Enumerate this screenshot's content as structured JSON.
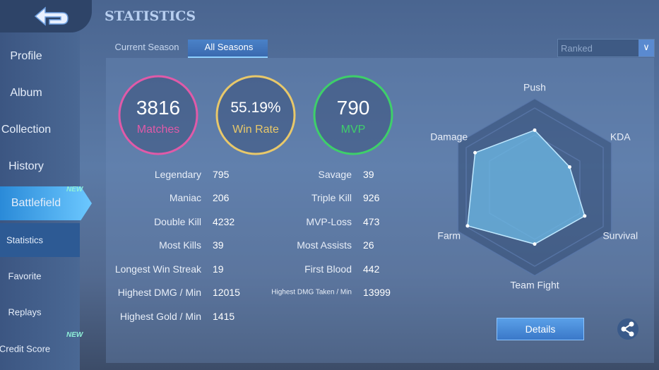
{
  "header": {
    "title": "STATISTICS"
  },
  "sidebar": {
    "items": [
      "Profile",
      "Album",
      "Collection",
      "History",
      "Battlefield",
      "Statistics",
      "Favorite",
      "Replays",
      "Credit Score"
    ],
    "badges": {
      "battlefield": "NEW",
      "credit_score": "NEW"
    }
  },
  "tabs": [
    "Current Season",
    "All Seasons"
  ],
  "filter": "Ranked",
  "summary": [
    {
      "value": 3816,
      "label": "Matches",
      "color": "#e05aa8"
    },
    {
      "value": "55.19%",
      "label": "Win Rate",
      "color": "#e8c86a"
    },
    {
      "value": 790,
      "label": "MVP",
      "color": "#3ecf6a"
    }
  ],
  "stats_left": [
    [
      "Legendary",
      795
    ],
    [
      "Maniac",
      206
    ],
    [
      "Double Kill",
      4232
    ],
    [
      "Most Kills",
      39
    ],
    [
      "Longest Win Streak",
      19
    ],
    [
      "Highest DMG / Min",
      12015
    ],
    [
      "Highest Gold / Min",
      1415
    ]
  ],
  "stats_right": [
    [
      "Savage",
      39
    ],
    [
      "Triple Kill",
      926
    ],
    [
      "MVP-Loss",
      473
    ],
    [
      "Most Assists",
      26
    ],
    [
      "First Blood",
      442
    ],
    [
      "Highest DMG Taken / Min",
      13999
    ]
  ],
  "radar": {
    "max": 100,
    "axes": [
      {
        "label": "Push",
        "value": 72
      },
      {
        "label": "KDA",
        "value": 51
      },
      {
        "label": "Survival",
        "value": 73
      },
      {
        "label": "Team Fight",
        "value": 72
      },
      {
        "label": "Farm",
        "value": 98
      },
      {
        "label": "Damage",
        "value": 87
      }
    ]
  },
  "details_button": "Details"
}
